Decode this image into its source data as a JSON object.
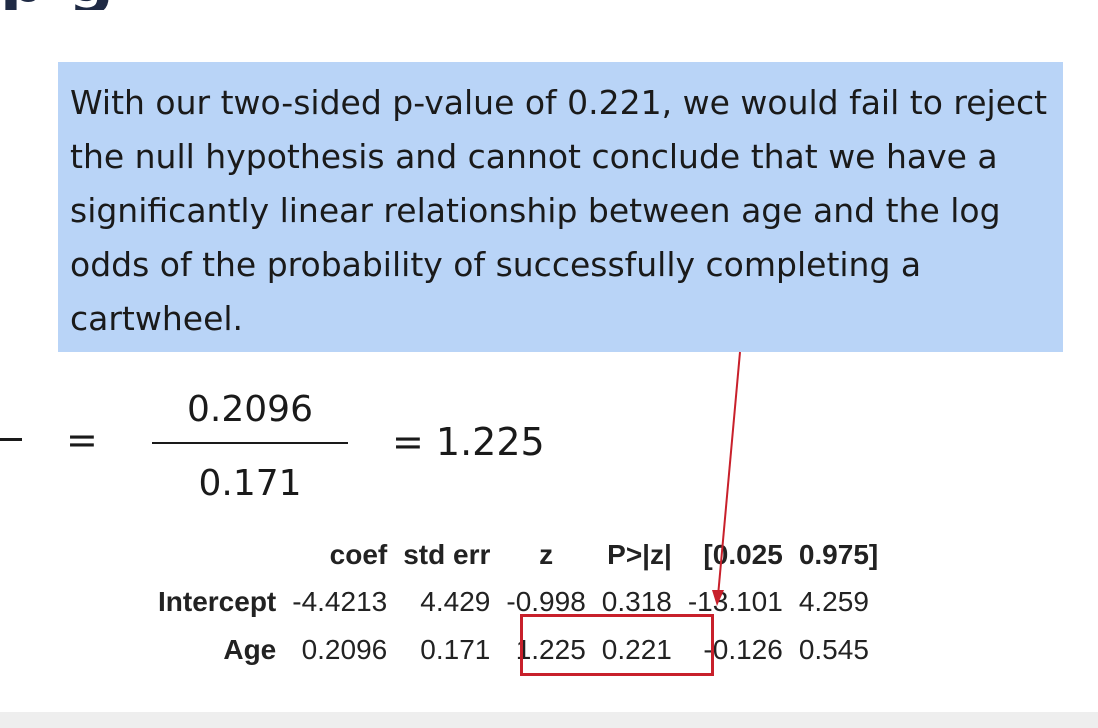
{
  "slide": {
    "title_fragment": "p                          g",
    "callout_text": "With our two-sided p-value of 0.221, we would fail to reject the null hypothesis and cannot conclude that we have a significantly linear relationship between age and the log odds of the probability of successfully completing a cartwheel.",
    "callout_color": "#b9d4f7",
    "equation": {
      "equals_sign": "=",
      "numerator": "0.2096",
      "denominator": "0.171",
      "result": "= 1.225"
    },
    "table": {
      "headers": [
        "",
        "coef",
        "std err",
        "z",
        "P>|z|",
        "[0.025",
        "0.975]"
      ],
      "rows": [
        [
          "Intercept",
          "-4.4213",
          "4.429",
          "-0.998",
          "0.318",
          "-13.101",
          "4.259"
        ],
        [
          "Age",
          "0.2096",
          "0.171",
          "1.225",
          "0.221",
          "-0.126",
          "0.545"
        ]
      ]
    },
    "highlight_color": "#c8202b"
  }
}
